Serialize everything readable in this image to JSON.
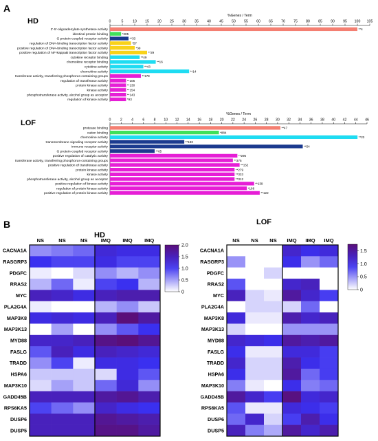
{
  "panel_a_letter": "A",
  "panel_b_letter": "B",
  "colors": {
    "salmon": "#f47f72",
    "green": "#3fe05a",
    "navy": "#1b3a8f",
    "yellow": "#f8d21a",
    "cyan": "#1fdcf2",
    "magenta": "#e61ed6",
    "heat_low": "#ffffff",
    "heat_mid": "#3a30f0",
    "heat_high": "#5a0f7a"
  },
  "chart_data": [
    {
      "type": "bar",
      "orientation": "horizontal",
      "title": "HD",
      "xlabel": "%Genes / Term",
      "xlim": [
        0,
        105
      ],
      "xticks": [
        0,
        5,
        10,
        15,
        20,
        25,
        30,
        35,
        40,
        45,
        50,
        55,
        60,
        65,
        70,
        75,
        80,
        85,
        90,
        95,
        100,
        105
      ],
      "categories": [
        "2'-5'-oligoadenylate synthetase activity",
        "identical protein binding",
        "G protein-coupled receptor activity",
        "regulation of DNA-binding transcription factor activity",
        "positive regulation of DNA-binding transcription factor activity",
        "positive regulation of NF-kappaB transcription factor activity",
        "cytokine receptor binding",
        "chemokine receptor binding",
        "cytokine activity",
        "chemokine activity",
        "transferase activity, transferring phosphorus-containing groups",
        "regulation of transferase activity",
        "protein kinase activity",
        "kinase activity",
        "phosphotransferase activity, alcohol group as acceptor",
        "regulation of kinase activity"
      ],
      "values": [
        100,
        4.5,
        7.5,
        8.5,
        10,
        15,
        12,
        18.5,
        13.5,
        32,
        12.5,
        6.5,
        6.5,
        6.5,
        6.5,
        6.5
      ],
      "bar_colors": [
        "salmon",
        "green",
        "navy",
        "yellow",
        "yellow",
        "yellow",
        "cyan",
        "cyan",
        "cyan",
        "cyan",
        "magenta",
        "magenta",
        "magenta",
        "magenta",
        "magenta",
        "magenta"
      ],
      "data_labels": [
        "**4",
        "*205",
        "**33",
        "*57",
        "*39",
        "**29",
        "**49",
        "**16",
        "**43",
        "**14",
        "**178",
        "**105",
        "**130",
        "**154",
        "**143",
        "*93"
      ]
    },
    {
      "type": "bar",
      "orientation": "horizontal",
      "title": "LOF",
      "xlabel": "%Genes / Term",
      "xlim": [
        0,
        46
      ],
      "xticks": [
        0,
        2,
        4,
        6,
        8,
        10,
        12,
        14,
        16,
        18,
        20,
        22,
        24,
        26,
        28,
        30,
        32,
        34,
        36,
        38,
        40,
        42,
        44,
        46
      ],
      "categories": [
        "protease binding",
        "cation binding",
        "chemokine activity",
        "transmembrane signaling receptor activity",
        "immune receptor activity",
        "G protein-coupled receptor activity",
        "positive regulation of catalytic activity",
        "transferase activity, transferring phosphorus-containing groups",
        "positive regulation of transferase activity",
        "protein kinase activity",
        "kinase activity",
        "phosphotransferase activity, alcohol group as acceptor",
        "positive regulation of kinase activity",
        "regulation of protein kinase activity",
        "positive regulation of protein kinase activity"
      ],
      "values": [
        30.5,
        19.5,
        44.3,
        13.3,
        34.5,
        8.0,
        22.8,
        22.0,
        23.2,
        22.3,
        22.3,
        22.3,
        25.8,
        24.5,
        26.8
      ],
      "bar_colors": [
        "salmon",
        "green",
        "cyan",
        "navy",
        "navy",
        "navy",
        "magenta",
        "magenta",
        "magenta",
        "magenta",
        "magenta",
        "magenta",
        "magenta",
        "magenta",
        "magenta"
      ],
      "data_labels": [
        "**47",
        "*884",
        "**23",
        "**193",
        "**54",
        "**65",
        "**295",
        "**375",
        "**152",
        "**279",
        "**333",
        "**312",
        "**139",
        "*168",
        "**122"
      ]
    },
    {
      "type": "heatmap",
      "title": "HD",
      "columns": [
        "NS",
        "NS",
        "NS",
        "IMQ",
        "IMQ",
        "IMQ"
      ],
      "rows": [
        "CACNA1A",
        "RASGRP3",
        "PDGFC",
        "RRAS2",
        "MYC",
        "PLA2G4A",
        "MAP3K8",
        "MAP3K13",
        "MYD88",
        "FASLG",
        "TRADD",
        "HSPA6",
        "MAP3K10",
        "GADD45B",
        "RPS6KA5",
        "DUSP6",
        "DUSP5"
      ],
      "colorbar_ticks": [
        0,
        0.5,
        1.0,
        1.5,
        2.0
      ],
      "colorbar_labels": [
        "0",
        "0.5",
        "1.0",
        "1.5",
        "2.0"
      ],
      "zlim": [
        0,
        2.0
      ],
      "values": [
        [
          0.6,
          0.7,
          0.8,
          1.3,
          1.2,
          1.2
        ],
        [
          1.1,
          1.0,
          1.0,
          1.2,
          1.0,
          1.0
        ],
        [
          0.1,
          0.0,
          0.2,
          0.6,
          0.4,
          0.6
        ],
        [
          0.4,
          0.8,
          0.1,
          1.0,
          1.1,
          0.4
        ],
        [
          1.5,
          1.4,
          1.2,
          1.5,
          1.6,
          1.6
        ],
        [
          0.1,
          0.0,
          0.0,
          0.4,
          0.6,
          0.3
        ],
        [
          1.2,
          1.3,
          1.2,
          1.5,
          2.0,
          1.7
        ],
        [
          0.0,
          0.5,
          0.0,
          0.6,
          0.9,
          1.1
        ],
        [
          1.4,
          1.4,
          1.5,
          1.9,
          2.0,
          1.8
        ],
        [
          0.9,
          1.5,
          1.2,
          1.5,
          1.4,
          1.3
        ],
        [
          0.6,
          1.0,
          0.1,
          1.2,
          1.2,
          1.1
        ],
        [
          0.3,
          0.3,
          0.3,
          0.2,
          1.2,
          0.9
        ],
        [
          0.2,
          0.5,
          0.3,
          0.8,
          1.3,
          0.6
        ],
        [
          1.5,
          1.5,
          1.5,
          1.7,
          1.8,
          1.6
        ],
        [
          1.0,
          0.8,
          0.6,
          1.4,
          1.2,
          1.1
        ],
        [
          1.5,
          1.5,
          1.5,
          1.8,
          1.7,
          1.6
        ],
        [
          1.5,
          1.5,
          1.5,
          1.9,
          1.9,
          1.7
        ]
      ]
    },
    {
      "type": "heatmap",
      "title": "LOF",
      "columns": [
        "NS",
        "NS",
        "NS",
        "IMQ",
        "IMQ",
        "IMQ"
      ],
      "rows": [
        "CACNA1A",
        "RASGRP3",
        "PDGFC",
        "RRAS2",
        "MYC",
        "PLA2G4A",
        "MAP3K8",
        "MAP3K13",
        "MYD88",
        "FASLG",
        "TRADD",
        "HSPA6",
        "MAP3K10",
        "GADD45B",
        "RPS6KA5",
        "DUSP6",
        "DUSP5"
      ],
      "colorbar_ticks": [
        0,
        0.5,
        1.0,
        1.5
      ],
      "colorbar_labels": [
        "0",
        "0.5",
        "1.0",
        "1.5"
      ],
      "zlim": [
        0,
        1.75
      ],
      "values": [
        [
          0.0,
          0.0,
          0.0,
          1.2,
          1.0,
          1.1
        ],
        [
          0.5,
          0.0,
          0.0,
          1.0,
          0.5,
          0.7
        ],
        [
          0.0,
          0.0,
          0.2,
          0.0,
          0.0,
          0.0
        ],
        [
          0.8,
          0.0,
          0.0,
          1.2,
          1.3,
          0.0
        ],
        [
          1.3,
          0.2,
          0.1,
          1.5,
          1.2,
          0.9
        ],
        [
          0.0,
          0.2,
          0.2,
          0.2,
          0.7,
          0.0
        ],
        [
          1.1,
          0.1,
          0.1,
          1.4,
          1.2,
          1.3
        ],
        [
          0.2,
          0.0,
          0.0,
          0.5,
          0.5,
          0.5
        ],
        [
          1.2,
          1.1,
          1.0,
          1.5,
          1.4,
          1.5
        ],
        [
          1.0,
          0.1,
          0.1,
          1.1,
          1.1,
          0.9
        ],
        [
          1.2,
          0.2,
          0.2,
          1.4,
          1.0,
          0.9
        ],
        [
          1.0,
          0.2,
          0.2,
          1.5,
          0.7,
          0.9
        ],
        [
          0.6,
          0.1,
          0.0,
          1.0,
          0.6,
          0.7
        ],
        [
          1.5,
          1.2,
          0.9,
          1.7,
          1.1,
          1.2
        ],
        [
          0.8,
          0.1,
          0.1,
          1.1,
          1.0,
          0.9
        ],
        [
          0.7,
          1.2,
          0.2,
          0.9,
          1.4,
          1.0
        ],
        [
          1.3,
          0.6,
          0.4,
          1.5,
          1.2,
          1.4
        ]
      ]
    }
  ]
}
